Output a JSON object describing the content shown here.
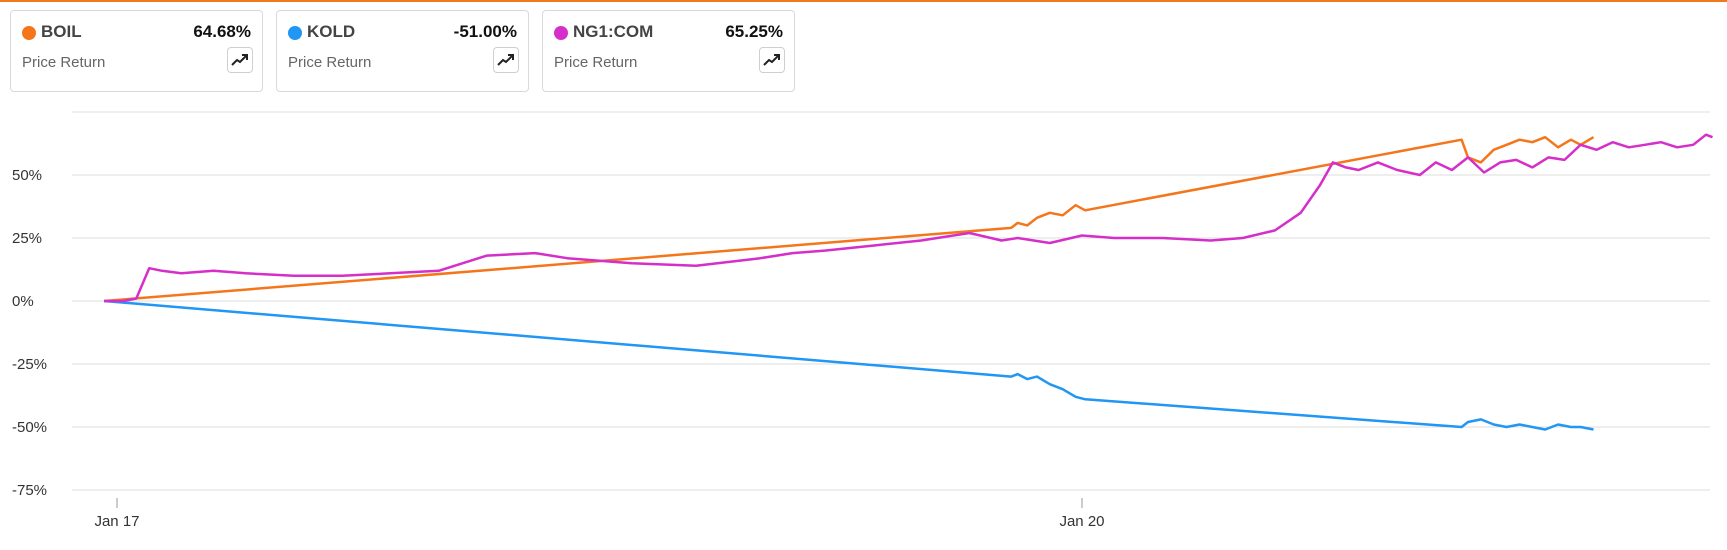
{
  "accent_color": "#f07a1a",
  "cards": [
    {
      "symbol": "BOIL",
      "value": "64.68%",
      "subtitle": "Price Return",
      "color": "#f5761a",
      "icon": "trend-chart-icon"
    },
    {
      "symbol": "KOLD",
      "value": "-51.00%",
      "subtitle": "Price Return",
      "color": "#2196f3",
      "icon": "trend-chart-icon"
    },
    {
      "symbol": "NG1:COM",
      "value": "65.25%",
      "subtitle": "Price Return",
      "color": "#d62ec8",
      "icon": "trend-chart-icon"
    }
  ],
  "chart_data": {
    "type": "line",
    "title": "",
    "xlabel": "",
    "ylabel": "",
    "ylim": [
      -75,
      75
    ],
    "yticks": [
      50,
      25,
      0,
      -25,
      -50,
      -75
    ],
    "ytick_labels": [
      "50%",
      "25%",
      "0%",
      "-25%",
      "-50%",
      "-75%"
    ],
    "xlim": [
      16.96,
      21.96
    ],
    "xticks": [
      17,
      20
    ],
    "xtick_labels": [
      "Jan 17",
      "Jan 20"
    ],
    "grid": true,
    "legend": "cards-above",
    "series": [
      {
        "name": "BOIL",
        "color": "#f5761a",
        "x": [
          16.96,
          19.78,
          19.8,
          19.83,
          19.86,
          19.9,
          19.94,
          19.98,
          20.01,
          21.18,
          21.2,
          21.24,
          21.28,
          21.32,
          21.36,
          21.4,
          21.44,
          21.48,
          21.52,
          21.55,
          21.59
        ],
        "values": [
          0,
          29,
          31,
          30,
          33,
          35,
          34,
          38,
          36,
          64,
          57,
          55,
          60,
          62,
          64,
          63,
          65,
          61,
          64,
          62,
          65
        ]
      },
      {
        "name": "KOLD",
        "color": "#2196f3",
        "x": [
          16.96,
          19.78,
          19.8,
          19.83,
          19.86,
          19.9,
          19.94,
          19.98,
          20.01,
          21.18,
          21.2,
          21.24,
          21.28,
          21.32,
          21.36,
          21.4,
          21.44,
          21.48,
          21.52,
          21.55,
          21.59
        ],
        "values": [
          0,
          -30,
          -29,
          -31,
          -30,
          -33,
          -35,
          -38,
          -39,
          -50,
          -48,
          -47,
          -49,
          -50,
          -49,
          -50,
          -51,
          -49,
          -50,
          -50,
          -51
        ]
      },
      {
        "name": "NG1:COM",
        "color": "#d62ec8",
        "x": [
          16.96,
          17.02,
          17.06,
          17.1,
          17.14,
          17.2,
          17.3,
          17.4,
          17.55,
          17.7,
          17.85,
          18.0,
          18.15,
          18.3,
          18.4,
          18.5,
          18.6,
          18.8,
          19.0,
          19.1,
          19.2,
          19.35,
          19.5,
          19.65,
          19.75,
          19.8,
          19.9,
          20.0,
          20.1,
          20.25,
          20.4,
          20.5,
          20.6,
          20.68,
          20.74,
          20.78,
          20.82,
          20.86,
          20.92,
          20.98,
          21.05,
          21.1,
          21.15,
          21.2,
          21.25,
          21.3,
          21.35,
          21.4,
          21.45,
          21.5,
          21.55,
          21.6,
          21.65,
          21.7,
          21.75,
          21.8,
          21.85,
          21.9,
          21.94,
          21.96
        ],
        "values": [
          0,
          0,
          1,
          13,
          12,
          11,
          12,
          11,
          10,
          10,
          11,
          12,
          18,
          19,
          17,
          16,
          15,
          14,
          17,
          19,
          20,
          22,
          24,
          27,
          24,
          25,
          23,
          26,
          25,
          25,
          24,
          25,
          28,
          35,
          46,
          55,
          53,
          52,
          55,
          52,
          50,
          55,
          52,
          57,
          51,
          55,
          56,
          53,
          57,
          56,
          62,
          60,
          63,
          61,
          62,
          63,
          61,
          62,
          66,
          65
        ]
      }
    ]
  }
}
